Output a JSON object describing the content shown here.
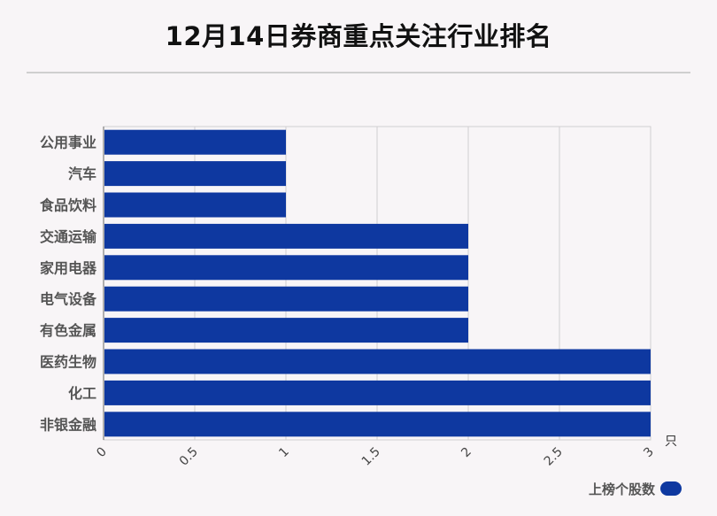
{
  "title": "12月14日券商重点关注行业排名",
  "legend": {
    "label": "上榜个股数",
    "color": "#0e38a0"
  },
  "chart_data": {
    "type": "bar",
    "orientation": "horizontal",
    "categories": [
      "公用事业",
      "汽车",
      "食品饮料",
      "交通运输",
      "家用电器",
      "电气设备",
      "有色金属",
      "医药生物",
      "化工",
      "非银金融"
    ],
    "series": [
      {
        "name": "上榜个股数",
        "values": [
          1,
          1,
          1,
          2,
          2,
          2,
          2,
          3,
          3,
          3
        ],
        "color": "#0e38a0"
      }
    ],
    "xlim": [
      0,
      3
    ],
    "x_ticks": [
      "0",
      "0.5",
      "1",
      "1.5",
      "2",
      "2.5",
      "3"
    ],
    "x_unit": "只",
    "grid": true,
    "legend_position": "bottom-right"
  }
}
